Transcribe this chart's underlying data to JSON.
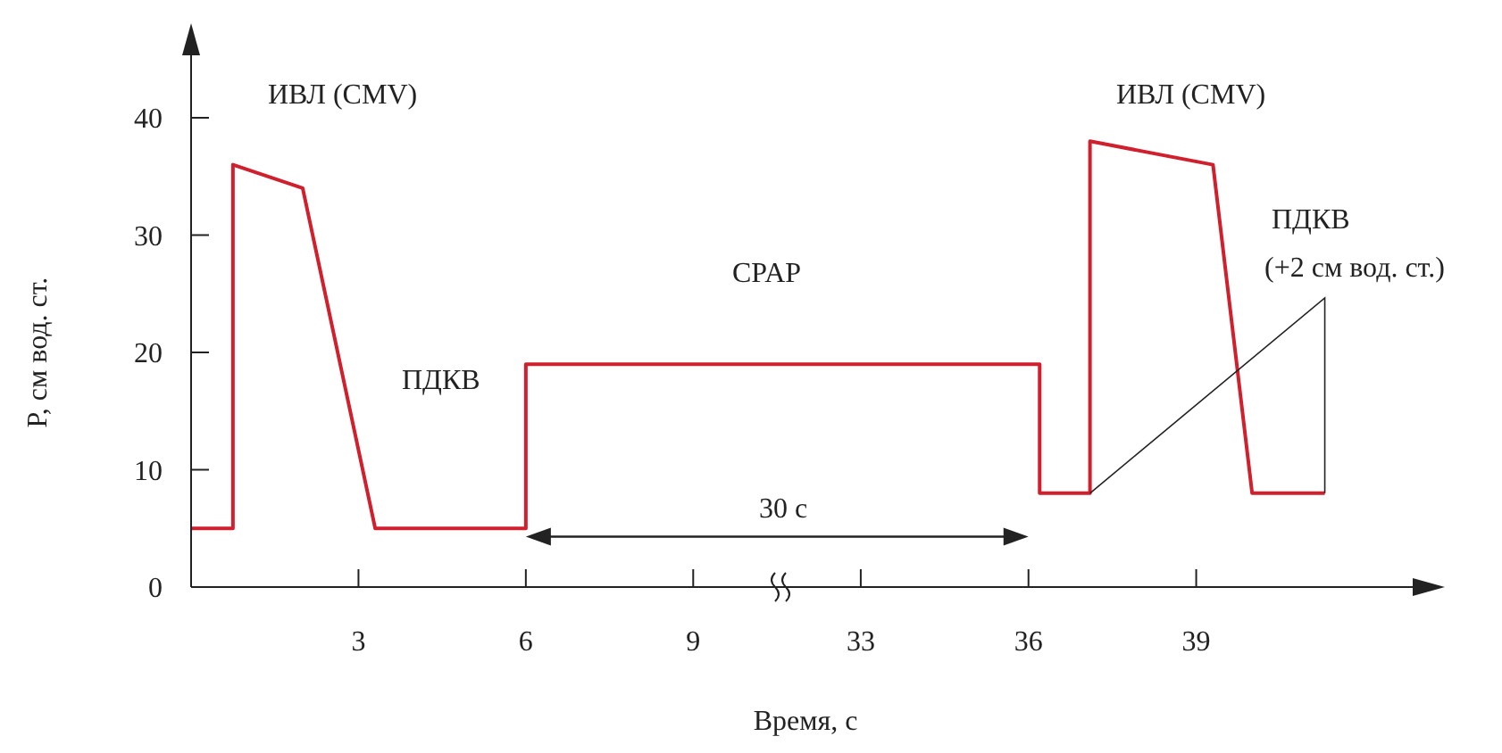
{
  "chart_data": [
    {
      "type": "line",
      "ylabel": "P, см вод. ст.",
      "xlabel": "Время, с",
      "x": [
        0,
        0.75,
        0.75,
        2.0,
        3.3,
        6,
        6,
        10.5
      ],
      "series": [
        {
          "color": "#d0202e",
          "values": [
            5,
            5,
            36,
            34,
            5,
            5,
            19,
            19
          ]
        }
      ],
      "xlim": [
        0,
        10.5
      ],
      "xticks": [
        3,
        6,
        9
      ],
      "ylim": [
        0,
        40
      ],
      "yticks": [
        0,
        10,
        20,
        30,
        40
      ],
      "marker": "none",
      "line_style": "solid",
      "grid": false,
      "legend": false,
      "annotations": [
        "ИВЛ (CMV)",
        "ПДКВ",
        "CPAP",
        "30 с"
      ]
    },
    {
      "type": "line",
      "x": [
        31.5,
        36.2,
        36.2,
        37.1,
        37.1,
        39.3,
        40.0,
        41.3
      ],
      "series": [
        {
          "color": "#d0202e",
          "values": [
            19,
            19,
            8,
            8,
            38,
            36,
            8,
            8
          ]
        }
      ],
      "xlim": [
        31.5,
        43
      ],
      "xticks": [
        33,
        36,
        39
      ],
      "ylim": [
        0,
        40
      ],
      "yticks": [
        0,
        10,
        20,
        30,
        40
      ],
      "tick_labels": "x",
      "grid": false,
      "legend": false,
      "marker": "none",
      "line_style": "solid",
      "annotations": [
        "ИВЛ (CMV)",
        "ПДКВ",
        "(+2 см вод. ст.)"
      ]
    }
  ]
}
